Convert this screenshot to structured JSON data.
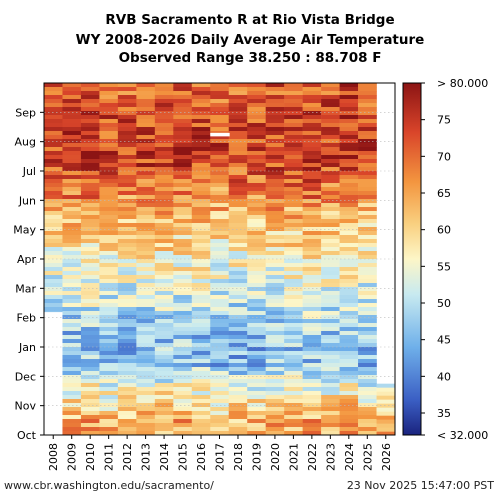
{
  "titles": [
    "RVB Sacramento R at Rio Vista Bridge",
    "WY 2008-2026 Daily Average Air Temperature",
    "Observed Range 38.250 : 88.708 F"
  ],
  "footer": {
    "url": "www.cbr.washington.edu/sacramento/",
    "timestamp": "23 Nov 2025 15:47:00 PST"
  },
  "chart_data": {
    "type": "heatmap",
    "x_categories": [
      "2008",
      "2009",
      "2010",
      "2011",
      "2012",
      "2013",
      "2014",
      "2015",
      "2016",
      "2017",
      "2018",
      "2019",
      "2020",
      "2021",
      "2022",
      "2023",
      "2024",
      "2025",
      "2026"
    ],
    "y_categories": [
      "Oct",
      "Nov",
      "Dec",
      "Jan",
      "Feb",
      "Mar",
      "Apr",
      "May",
      "Jun",
      "Jul",
      "Aug",
      "Sep"
    ],
    "colorbar": {
      "min_label": "< 32.000",
      "max_label": "> 80.000",
      "ticks": [
        35,
        40,
        45,
        50,
        55,
        60,
        65,
        70,
        75
      ],
      "range": [
        32,
        80
      ]
    },
    "monthly_mean_F": {
      "Oct": 64,
      "Nov": 56,
      "Dec": 46,
      "Jan": 47,
      "Feb": 51,
      "Mar": 55,
      "Apr": 59,
      "May": 64,
      "Jun": 70,
      "Jul": 75,
      "Aug": 74,
      "Sep": 72
    },
    "data_coverage": "2008 column from Feb onward (partial WY); 2026 column Oct through late Nov only"
  }
}
